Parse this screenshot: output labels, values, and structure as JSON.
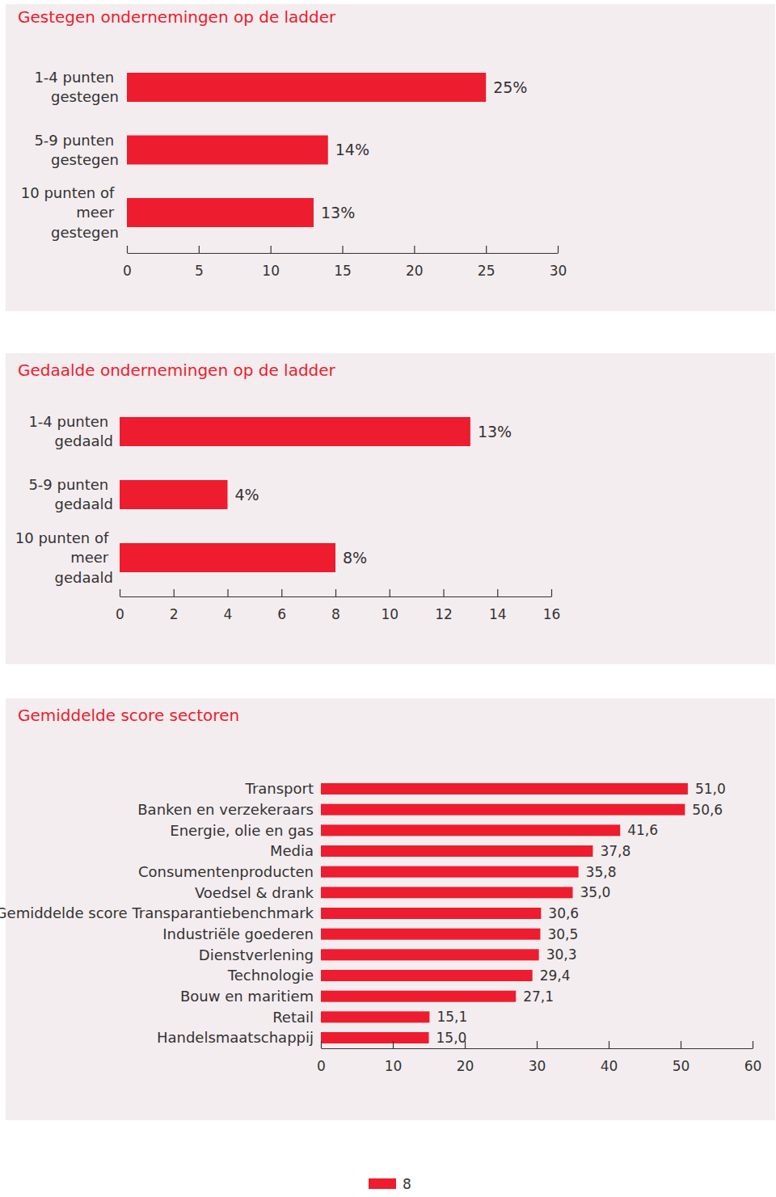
{
  "chart_data": [
    {
      "type": "bar",
      "orientation": "horizontal",
      "title": "Gestegen ondernemingen op de ladder",
      "categories": [
        "1-4 punten gestegen",
        "5-9 punten gestegen",
        "10 punten of meer gestegen"
      ],
      "values": [
        25,
        14,
        13
      ],
      "value_labels": [
        "25%",
        "14%",
        "13%"
      ],
      "data_labels": true,
      "color": "#ed1c2e",
      "xlim": [
        0,
        30
      ],
      "xticks": [
        0,
        5,
        10,
        15,
        20,
        25,
        30
      ],
      "grid": false
    },
    {
      "type": "bar",
      "orientation": "horizontal",
      "title": "Gedaalde ondernemingen op de ladder",
      "categories": [
        "1-4 punten gedaald",
        "5-9 punten gedaald",
        "10 punten of meer gedaald"
      ],
      "values": [
        13,
        4,
        8
      ],
      "value_labels": [
        "13%",
        "4%",
        "8%"
      ],
      "data_labels": true,
      "color": "#ed1c2e",
      "xlim": [
        0,
        16
      ],
      "xticks": [
        0,
        2,
        4,
        6,
        8,
        10,
        12,
        14,
        16
      ],
      "grid": false
    },
    {
      "type": "bar",
      "orientation": "horizontal",
      "title": "Gemiddelde score sectoren",
      "categories": [
        "Transport",
        "Banken en verzekeraars",
        "Energie, olie en gas",
        "Media",
        "Consumentenproducten",
        "Voedsel & drank",
        "Gemiddelde score Transparantiebenchmark",
        "Industriële goederen",
        "Dienstverlening",
        "Technologie",
        "Bouw en maritiem",
        "Retail",
        "Handelsmaatschappij"
      ],
      "values": [
        51.0,
        50.6,
        41.6,
        37.8,
        35.8,
        35.0,
        30.6,
        30.5,
        30.3,
        29.4,
        27.1,
        15.1,
        15.0
      ],
      "value_labels": [
        "51,0",
        "50,6",
        "41,6",
        "37,8",
        "35,8",
        "35,0",
        "30,6",
        "30,5",
        "30,3",
        "29,4",
        "27,1",
        "15,1",
        "15,0"
      ],
      "data_labels": true,
      "color": "#ed1c2e",
      "xlim": [
        0,
        60
      ],
      "xticks": [
        0,
        10,
        20,
        30,
        40,
        50,
        60
      ],
      "grid": false
    }
  ],
  "page_number": "8"
}
